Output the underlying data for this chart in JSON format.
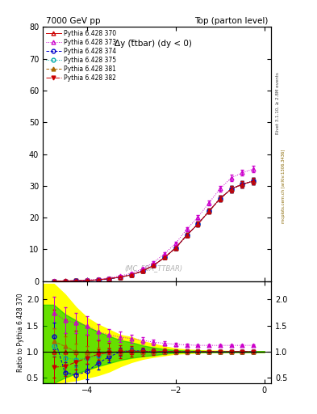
{
  "title_left": "7000 GeV pp",
  "title_right": "Top (parton level)",
  "plot_title": "Δy (t̅tbar) (dy < 0)",
  "ylabel_bottom": "Ratio to Pythia 6.428 370",
  "rivet_label": "Rivet 3.1.10, ≥ 2.8M events",
  "mcplots_label": "mcplots.cern.ch [arXiv:1306.3436]",
  "watermark": "(MC_FBA_TTBAR)",
  "x_min": -5.0,
  "x_max": 0.15,
  "y_top_min": 0,
  "y_top_max": 80,
  "y_bot_min": 0.4,
  "y_bot_max": 2.35,
  "series": [
    {
      "label": "Pythia 6.428 370",
      "color": "#cc0000",
      "linestyle": "-",
      "marker": "^",
      "fillstyle": "none"
    },
    {
      "label": "Pythia 6.428 373",
      "color": "#cc00cc",
      "linestyle": ":",
      "marker": "^",
      "fillstyle": "none"
    },
    {
      "label": "Pythia 6.428 374",
      "color": "#0000cc",
      "linestyle": "--",
      "marker": "o",
      "fillstyle": "none"
    },
    {
      "label": "Pythia 6.428 375",
      "color": "#00aaaa",
      "linestyle": ":",
      "marker": "o",
      "fillstyle": "none"
    },
    {
      "label": "Pythia 6.428 381",
      "color": "#aa6600",
      "linestyle": "--",
      "marker": "^",
      "fillstyle": "full"
    },
    {
      "label": "Pythia 6.428 382",
      "color": "#cc0000",
      "linestyle": "-.",
      "marker": "v",
      "fillstyle": "full"
    }
  ],
  "x_values": [
    -4.75,
    -4.5,
    -4.25,
    -4.0,
    -3.75,
    -3.5,
    -3.25,
    -3.0,
    -2.75,
    -2.5,
    -2.25,
    -2.0,
    -1.75,
    -1.5,
    -1.25,
    -1.0,
    -0.75,
    -0.5,
    -0.25
  ],
  "ref_values": [
    0.05,
    0.08,
    0.15,
    0.25,
    0.45,
    0.8,
    1.3,
    2.0,
    3.2,
    5.0,
    7.5,
    10.5,
    14.5,
    18.0,
    22.0,
    26.0,
    29.0,
    30.5,
    31.5
  ],
  "ref_errors": [
    0.04,
    0.05,
    0.06,
    0.08,
    0.1,
    0.13,
    0.16,
    0.2,
    0.25,
    0.32,
    0.4,
    0.5,
    0.6,
    0.7,
    0.8,
    0.9,
    0.95,
    1.0,
    1.05
  ],
  "ratio_373": [
    1.75,
    1.6,
    1.55,
    1.5,
    1.38,
    1.32,
    1.28,
    1.25,
    1.22,
    1.18,
    1.16,
    1.14,
    1.13,
    1.12,
    1.12,
    1.12,
    1.12,
    1.12,
    1.12
  ],
  "ratio_374": [
    1.3,
    0.6,
    0.55,
    0.62,
    0.78,
    0.9,
    1.0,
    1.02,
    1.01,
    1.0,
    1.0,
    1.0,
    1.0,
    1.0,
    1.0,
    1.0,
    1.0,
    1.0,
    1.0
  ],
  "ratio_375": [
    1.1,
    0.88,
    0.85,
    0.88,
    0.92,
    0.97,
    1.0,
    1.01,
    1.0,
    1.0,
    1.0,
    1.0,
    1.0,
    1.0,
    1.0,
    1.0,
    1.0,
    1.0,
    1.0
  ],
  "ratio_381": [
    1.2,
    1.1,
    1.0,
    0.98,
    0.97,
    0.99,
    1.0,
    1.01,
    1.0,
    1.0,
    1.0,
    1.0,
    1.0,
    1.0,
    1.0,
    1.0,
    1.0,
    1.0,
    1.0
  ],
  "ratio_382": [
    0.7,
    0.72,
    0.8,
    0.88,
    0.95,
    0.98,
    1.0,
    1.0,
    1.0,
    1.0,
    1.0,
    1.0,
    1.0,
    1.0,
    1.0,
    1.0,
    1.0,
    1.0,
    1.0
  ],
  "ratio_373_err": [
    0.3,
    0.25,
    0.2,
    0.18,
    0.15,
    0.12,
    0.1,
    0.08,
    0.06,
    0.05,
    0.04,
    0.03,
    0.02,
    0.02,
    0.02,
    0.02,
    0.02,
    0.02,
    0.02
  ],
  "ratio_374_err": [
    0.25,
    0.2,
    0.18,
    0.15,
    0.12,
    0.1,
    0.08,
    0.06,
    0.05,
    0.04,
    0.03,
    0.02,
    0.02,
    0.02,
    0.02,
    0.02,
    0.02,
    0.02,
    0.02
  ],
  "ratio_375_err": [
    0.2,
    0.18,
    0.15,
    0.12,
    0.1,
    0.08,
    0.06,
    0.05,
    0.04,
    0.03,
    0.02,
    0.02,
    0.02,
    0.02,
    0.02,
    0.02,
    0.02,
    0.02,
    0.02
  ],
  "ratio_381_err": [
    0.25,
    0.2,
    0.15,
    0.12,
    0.1,
    0.08,
    0.06,
    0.05,
    0.04,
    0.03,
    0.02,
    0.02,
    0.02,
    0.02,
    0.02,
    0.02,
    0.02,
    0.02,
    0.02
  ],
  "ratio_382_err": [
    0.2,
    0.18,
    0.15,
    0.12,
    0.1,
    0.08,
    0.06,
    0.05,
    0.04,
    0.03,
    0.02,
    0.02,
    0.02,
    0.02,
    0.02,
    0.02,
    0.02,
    0.02,
    0.02
  ],
  "band_yellow_x": [
    -5.0,
    -4.75,
    -4.5,
    -4.25,
    -4.0,
    -3.75,
    -3.5,
    -3.25,
    -3.0,
    -2.75,
    -2.5,
    -2.25,
    -2.0,
    -1.75,
    -1.5,
    -1.25,
    -1.0,
    -0.75,
    -0.5,
    -0.25,
    0.0
  ],
  "band_yellow_upper": [
    2.3,
    2.3,
    2.1,
    1.85,
    1.65,
    1.52,
    1.42,
    1.32,
    1.28,
    1.2,
    1.15,
    1.1,
    1.06,
    1.04,
    1.03,
    1.02,
    1.02,
    1.01,
    1.01,
    1.01,
    1.01
  ],
  "band_yellow_lower": [
    0.4,
    0.4,
    0.42,
    0.45,
    0.5,
    0.55,
    0.62,
    0.72,
    0.8,
    0.86,
    0.9,
    0.93,
    0.96,
    0.97,
    0.98,
    0.99,
    0.99,
    0.99,
    0.99,
    0.99,
    0.99
  ],
  "band_green_x": [
    -5.0,
    -4.75,
    -4.5,
    -4.25,
    -4.0,
    -3.75,
    -3.5,
    -3.25,
    -3.0,
    -2.75,
    -2.5,
    -2.25,
    -2.0,
    -1.75,
    -1.5,
    -1.25,
    -1.0,
    -0.75,
    -0.5,
    -0.25,
    0.0
  ],
  "band_green_upper": [
    1.9,
    1.9,
    1.72,
    1.6,
    1.48,
    1.38,
    1.3,
    1.22,
    1.18,
    1.12,
    1.08,
    1.05,
    1.03,
    1.02,
    1.02,
    1.01,
    1.01,
    1.01,
    1.01,
    1.01,
    1.01
  ],
  "band_green_lower": [
    0.4,
    0.4,
    0.5,
    0.58,
    0.65,
    0.72,
    0.78,
    0.84,
    0.88,
    0.91,
    0.93,
    0.96,
    0.98,
    0.99,
    0.99,
    0.99,
    0.99,
    0.99,
    0.99,
    0.99,
    0.99
  ],
  "background_color": "#ffffff"
}
